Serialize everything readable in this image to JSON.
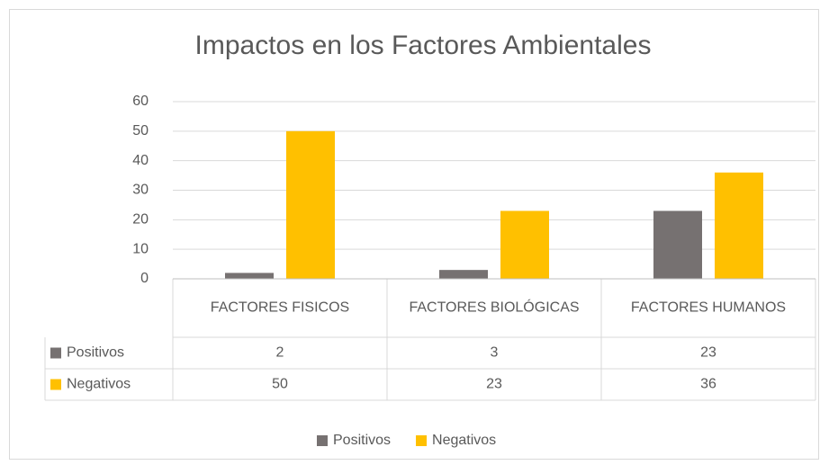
{
  "chart_data": {
    "type": "bar",
    "title": "Impactos en los Factores Ambientales",
    "categories": [
      "FACTORES FISICOS",
      "FACTORES BIOLÓGICAS",
      "FACTORES HUMANOS"
    ],
    "series": [
      {
        "name": "Positivos",
        "color": "#767171",
        "values": [
          2,
          3,
          23
        ]
      },
      {
        "name": "Negativos",
        "color": "#ffc000",
        "values": [
          50,
          23,
          36
        ]
      }
    ],
    "ylim": [
      0,
      60
    ],
    "yticks": [
      0,
      10,
      20,
      30,
      40,
      50,
      60
    ],
    "grid": true,
    "legend": "bottom"
  }
}
